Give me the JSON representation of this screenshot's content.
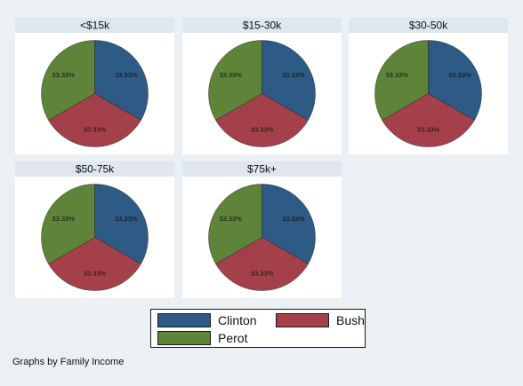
{
  "chart_data": {
    "type": "pie",
    "categories": [
      "Clinton",
      "Bush",
      "Perot"
    ],
    "colors": {
      "Clinton": "#2e5a86",
      "Bush": "#a4404a",
      "Perot": "#5e843a"
    },
    "panels": [
      {
        "title": "<$15k",
        "values": [
          33.33,
          33.33,
          33.33
        ],
        "labels": [
          "33.33%",
          "33.33%",
          "33.33%"
        ]
      },
      {
        "title": "$15-30k",
        "values": [
          33.33,
          33.33,
          33.33
        ],
        "labels": [
          "33.33%",
          "33.33%",
          "33.33%"
        ]
      },
      {
        "title": "$30-50k",
        "values": [
          33.33,
          33.33,
          33.33
        ],
        "labels": [
          "33.33%",
          "33.33%",
          "33.33%"
        ]
      },
      {
        "title": "$50-75k",
        "values": [
          33.33,
          33.33,
          33.33
        ],
        "labels": [
          "33.33%",
          "33.33%",
          "33.33%"
        ]
      },
      {
        "title": "$75k+",
        "values": [
          33.33,
          33.33,
          33.33
        ],
        "labels": [
          "33.33%",
          "33.33%",
          "33.33%"
        ]
      }
    ],
    "legend": {
      "placement": "bottom",
      "entries": [
        "Clinton",
        "Bush",
        "Perot"
      ]
    },
    "note": "Graphs by Family Income"
  }
}
